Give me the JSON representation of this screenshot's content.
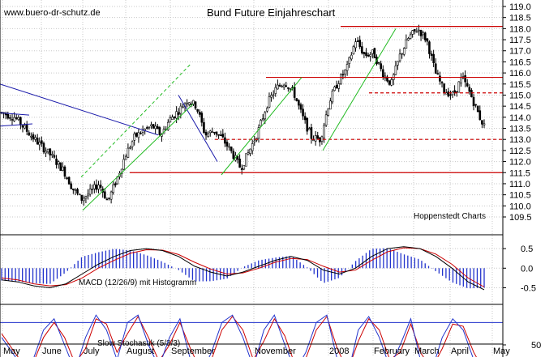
{
  "site_label": "www.buero-dr-schutz.de",
  "credit": "Hoppenstedt Charts",
  "chart_data": [
    {
      "type": "candlestick",
      "title": "Bund Future Einjahreschart",
      "x_labels": [
        "May",
        "June",
        "July",
        "August",
        "September",
        "November",
        "2008",
        "February",
        "March",
        "April",
        "May"
      ],
      "ylim": [
        109.5,
        119.0
      ],
      "y_ticks": [
        "109.5",
        "110.0",
        "110.5",
        "111.0",
        "111.5",
        "112.0",
        "112.5",
        "113.0",
        "113.5",
        "114.0",
        "114.5",
        "115.0",
        "115.5",
        "116.0",
        "116.5",
        "117.0",
        "117.5",
        "118.0",
        "118.5",
        "119.0"
      ],
      "price_path": [
        [
          0,
          114.2
        ],
        [
          3,
          114.0
        ],
        [
          7,
          113.1
        ],
        [
          11,
          112.3
        ],
        [
          14,
          111.6
        ],
        [
          16,
          110.8
        ],
        [
          18,
          110.3
        ],
        [
          20,
          110.6
        ],
        [
          22,
          111.0
        ],
        [
          24,
          110.2
        ],
        [
          26,
          111.2
        ],
        [
          28,
          112.3
        ],
        [
          30,
          113.1
        ],
        [
          32,
          113.4
        ],
        [
          34,
          113.6
        ],
        [
          36,
          113.2
        ],
        [
          38,
          113.9
        ],
        [
          40,
          114.3
        ],
        [
          42,
          114.8
        ],
        [
          44,
          114.5
        ],
        [
          46,
          113.2
        ],
        [
          48,
          113.4
        ],
        [
          50,
          113.0
        ],
        [
          52,
          112.4
        ],
        [
          54,
          111.7
        ],
        [
          56,
          112.5
        ],
        [
          58,
          113.4
        ],
        [
          60,
          114.6
        ],
        [
          62,
          115.3
        ],
        [
          64,
          115.6
        ],
        [
          66,
          115.1
        ],
        [
          68,
          114.0
        ],
        [
          70,
          113.1
        ],
        [
          72,
          113.0
        ],
        [
          74,
          114.7
        ],
        [
          76,
          115.6
        ],
        [
          78,
          116.2
        ],
        [
          80,
          117.5
        ],
        [
          82,
          116.8
        ],
        [
          84,
          116.9
        ],
        [
          86,
          116.0
        ],
        [
          88,
          115.5
        ],
        [
          90,
          116.8
        ],
        [
          92,
          117.6
        ],
        [
          94,
          118.0
        ],
        [
          96,
          117.5
        ],
        [
          98,
          116.0
        ],
        [
          100,
          115.2
        ],
        [
          102,
          115.0
        ],
        [
          104,
          115.8
        ],
        [
          106,
          115.0
        ],
        [
          108,
          114.0
        ],
        [
          109,
          113.6
        ]
      ],
      "resistance_lines": [
        {
          "y": 118.1,
          "style": "solid"
        },
        {
          "y": 115.8,
          "style": "solid"
        },
        {
          "y": 115.1,
          "style": "dashed"
        },
        {
          "y": 113.0,
          "style": "dashed"
        },
        {
          "y": 111.5,
          "style": "solid"
        }
      ]
    },
    {
      "type": "line",
      "label": "MACD (12/26/9) mit Histogramm",
      "ylim": [
        -0.8,
        0.75
      ],
      "y_ticks": [
        "0.5",
        "0.0",
        "-0.5"
      ],
      "series": [
        {
          "values": [
            -0.3,
            -0.35,
            -0.45,
            -0.5,
            -0.4,
            -0.15,
            0.1,
            0.3,
            0.45,
            0.5,
            0.45,
            0.3,
            0.05,
            -0.1,
            -0.2,
            -0.1,
            0.05,
            0.2,
            0.3,
            0.2,
            -0.05,
            -0.15,
            0.0,
            0.3,
            0.5,
            0.55,
            0.5,
            0.3,
            0.0,
            -0.35,
            -0.55
          ]
        },
        {
          "values": [
            -0.25,
            -0.3,
            -0.4,
            -0.45,
            -0.42,
            -0.25,
            0.0,
            0.2,
            0.38,
            0.47,
            0.46,
            0.35,
            0.15,
            -0.02,
            -0.15,
            -0.12,
            0.0,
            0.15,
            0.25,
            0.22,
            0.05,
            -0.1,
            -0.05,
            0.2,
            0.42,
            0.52,
            0.5,
            0.36,
            0.1,
            -0.25,
            -0.48
          ]
        }
      ]
    },
    {
      "type": "line",
      "label": "Slow Stochastik (5/3/3)",
      "ylim": [
        0,
        100
      ],
      "y_ticks": [
        "50"
      ],
      "bands": [
        80,
        20
      ],
      "series": [
        {
          "values": [
            60,
            40,
            20,
            30,
            70,
            85,
            50,
            15,
            60,
            90,
            70,
            30,
            80,
            90,
            50,
            20,
            60,
            85,
            30,
            10,
            40,
            80,
            90,
            60,
            20,
            70,
            90,
            50,
            15,
            40,
            80,
            90,
            30,
            10,
            70,
            88,
            60,
            20,
            50,
            85,
            25,
            15,
            60,
            85,
            70,
            30,
            10
          ]
        },
        {
          "values": [
            65,
            45,
            25,
            25,
            60,
            80,
            60,
            25,
            45,
            85,
            78,
            40,
            65,
            88,
            60,
            28,
            50,
            80,
            45,
            15,
            30,
            70,
            88,
            70,
            30,
            55,
            85,
            62,
            22,
            32,
            70,
            88,
            45,
            15,
            55,
            85,
            70,
            30,
            40,
            78,
            38,
            18,
            45,
            78,
            75,
            40,
            15
          ]
        }
      ]
    }
  ]
}
